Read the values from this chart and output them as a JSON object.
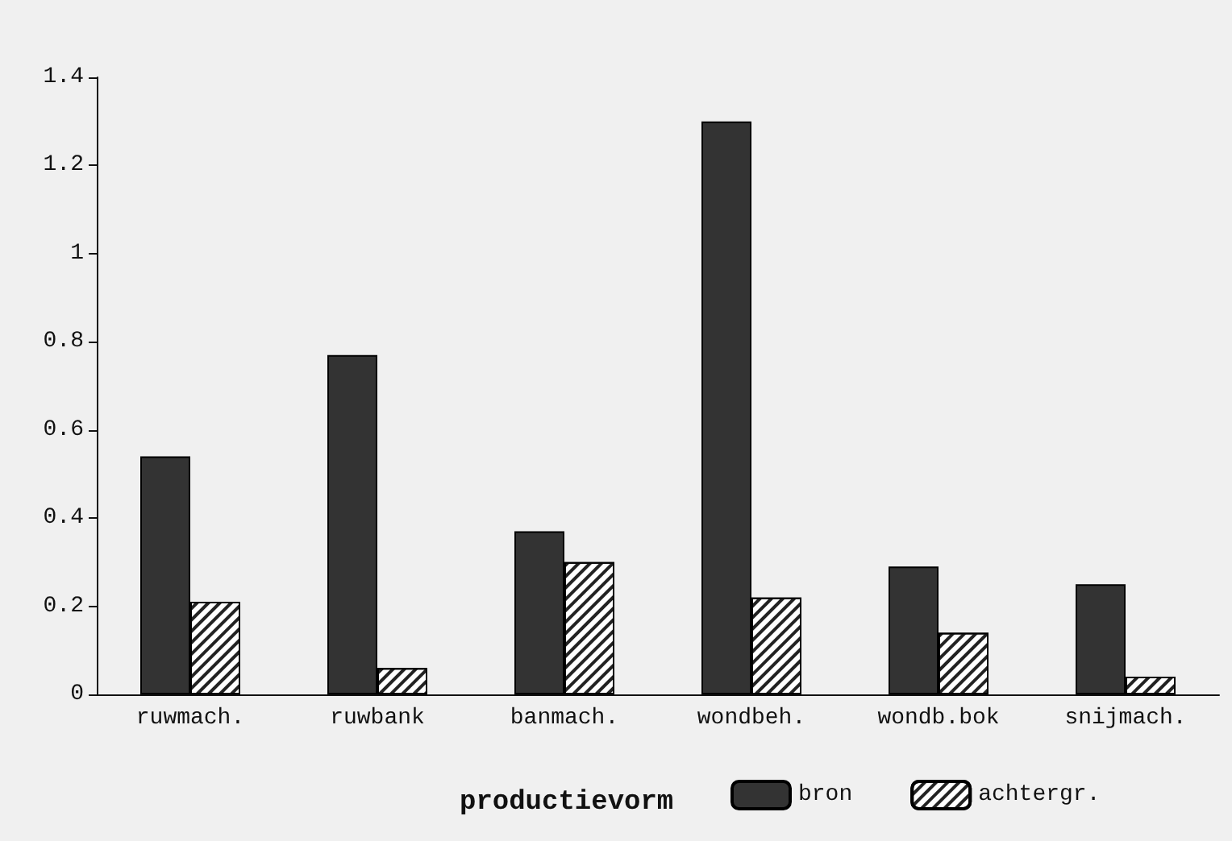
{
  "chart_data": {
    "type": "bar",
    "categories": [
      "ruwmach.",
      "ruwbank",
      "banmach.",
      "wondbeh.",
      "wondb.bok",
      "snijmach."
    ],
    "series": [
      {
        "name": "bron",
        "color": "#333333",
        "values": [
          0.54,
          0.77,
          0.37,
          1.3,
          0.29,
          0.25
        ]
      },
      {
        "name": "achtergr.",
        "color": "#ffffff",
        "values": [
          0.21,
          0.06,
          0.3,
          0.22,
          0.14,
          0.04
        ]
      }
    ],
    "ylim": [
      0,
      1.4
    ],
    "yticks": [
      0,
      0.2,
      0.4,
      0.6,
      0.8,
      1,
      1.2,
      1.4
    ],
    "grid": false,
    "legend": "bottom",
    "legend_title": "productievorm"
  }
}
